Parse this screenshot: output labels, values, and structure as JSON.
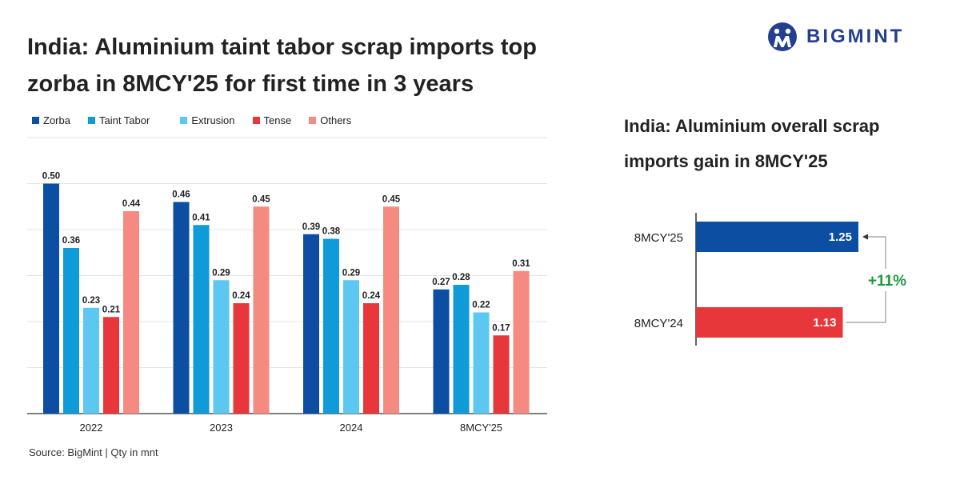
{
  "title": "India: Aluminium taint tabor scrap imports top zorba in 8MCY'25 for first time in 3 years",
  "logo": {
    "text": "BIGMINT",
    "icon": "bigmint-logo-icon",
    "color": "#243f8f"
  },
  "source": "Source: BigMint | Qty in mnt",
  "chart_data": [
    {
      "type": "bar",
      "categories": [
        "2022",
        "2023",
        "2024",
        "8MCY'25"
      ],
      "series": [
        {
          "name": "Zorba",
          "color": "#0b4ea2",
          "values": [
            0.5,
            0.46,
            0.39,
            0.27
          ],
          "labels": [
            "0.50",
            "0.46",
            "0.39",
            "0.27"
          ]
        },
        {
          "name": "Taint Tabor",
          "color": "#0f9ad8",
          "values": [
            0.36,
            0.41,
            0.38,
            0.28
          ],
          "labels": [
            "0.36",
            "0.41",
            "0.38",
            "0.28"
          ]
        },
        {
          "name": "Extrusion",
          "color": "#5cc8f2",
          "values": [
            0.23,
            0.29,
            0.29,
            0.22
          ],
          "labels": [
            "0.23",
            "0.29",
            "0.29",
            "0.22"
          ]
        },
        {
          "name": "Tense",
          "color": "#e8373a",
          "values": [
            0.21,
            0.24,
            0.24,
            0.17
          ],
          "labels": [
            "0.21",
            "0.24",
            "0.24",
            "0.17"
          ]
        },
        {
          "name": "Others",
          "color": "#f58a80",
          "values": [
            0.44,
            0.45,
            0.45,
            0.31
          ],
          "labels": [
            "0.44",
            "0.45",
            "0.45",
            "0.31"
          ]
        }
      ],
      "ylim": [
        0,
        0.6
      ],
      "grid": true,
      "legend": "top-left"
    },
    {
      "type": "bar",
      "orientation": "horizontal",
      "title": "India: Aluminium overall scrap imports gain in 8MCY'25",
      "categories": [
        "8MCY'25",
        "8MCY'24"
      ],
      "values": [
        1.25,
        1.13
      ],
      "labels": [
        "1.25",
        "1.13"
      ],
      "colors": [
        "#0b4ea2",
        "#e8373a"
      ],
      "annotation": "+11%",
      "annotation_color": "#1e9a3e"
    }
  ]
}
